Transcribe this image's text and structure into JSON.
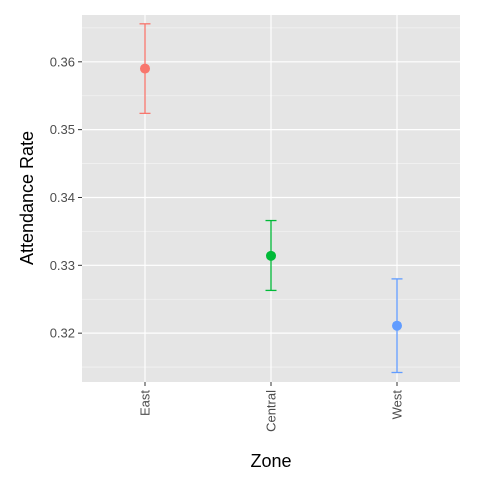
{
  "chart_data": {
    "type": "errorbar",
    "title": "",
    "xlabel": "Zone",
    "ylabel": "Attendance Rate",
    "categories": [
      "East",
      "Central",
      "West"
    ],
    "points": [
      {
        "category": "East",
        "value": 0.359,
        "lower": 0.3524,
        "upper": 0.3656,
        "color": "#F8766D"
      },
      {
        "category": "Central",
        "value": 0.3314,
        "lower": 0.3263,
        "upper": 0.3366,
        "color": "#00BA38"
      },
      {
        "category": "West",
        "value": 0.3211,
        "lower": 0.3142,
        "upper": 0.328,
        "color": "#619CFF"
      }
    ],
    "ylim": [
      0.3128,
      0.3669
    ],
    "yticks": [
      0.32,
      0.33,
      0.34,
      0.35,
      0.36
    ],
    "ytick_labels": [
      "0.32",
      "0.33",
      "0.34",
      "0.35",
      "0.36"
    ],
    "grid": true,
    "panel_background": "#E5E5E5",
    "grid_color": "#FFFFFF",
    "legend": "none"
  }
}
